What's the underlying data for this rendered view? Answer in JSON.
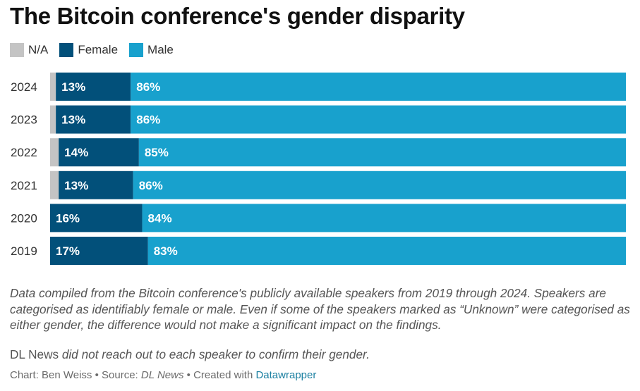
{
  "title": "The Bitcoin conference's gender disparity",
  "legend": [
    {
      "label": "N/A",
      "color": "#c4c4c4"
    },
    {
      "label": "Female",
      "color": "#02507a"
    },
    {
      "label": "Male",
      "color": "#18a1cd"
    }
  ],
  "chart_data": {
    "type": "bar",
    "orientation": "horizontal",
    "stacked": true,
    "normalized": true,
    "categories": [
      "2024",
      "2023",
      "2022",
      "2021",
      "2020",
      "2019"
    ],
    "series": [
      {
        "name": "N/A",
        "color": "#c4c4c4",
        "values": [
          1,
          1,
          1.5,
          1.5,
          0,
          0
        ],
        "labels": [
          "",
          "",
          "",
          "",
          "",
          ""
        ]
      },
      {
        "name": "Female",
        "color": "#02507a",
        "values": [
          13,
          13,
          14,
          13,
          16,
          17
        ],
        "labels": [
          "13%",
          "13%",
          "14%",
          "13%",
          "16%",
          "17%"
        ]
      },
      {
        "name": "Male",
        "color": "#18a1cd",
        "values": [
          86,
          86,
          85,
          86,
          84,
          83
        ],
        "labels": [
          "86%",
          "86%",
          "85%",
          "86%",
          "84%",
          "83%"
        ]
      }
    ],
    "xlim": [
      0,
      100
    ],
    "title": "The Bitcoin conference's gender disparity",
    "xlabel": "",
    "ylabel": "",
    "grid": false,
    "legend_position": "top-left"
  },
  "notes": "Data compiled from the Bitcoin conference's publicly available speakers from 2019 through 2024. Speakers are categorised as identifiably female or male. Even if some of the speakers marked as “Unknown” were categorised as either gender, the difference would not make a significant impact on the findings.",
  "disclaimer": {
    "org": "DL News",
    "rest": " did not reach out to each speaker to confirm their gender."
  },
  "footer": {
    "chart_prefix": "Chart: ",
    "author": "Ben Weiss",
    "sep1": " • ",
    "source_prefix": "Source: ",
    "source_name": "DL News",
    "sep2": " • ",
    "created_prefix": "Created with ",
    "tool": "Datawrapper"
  }
}
